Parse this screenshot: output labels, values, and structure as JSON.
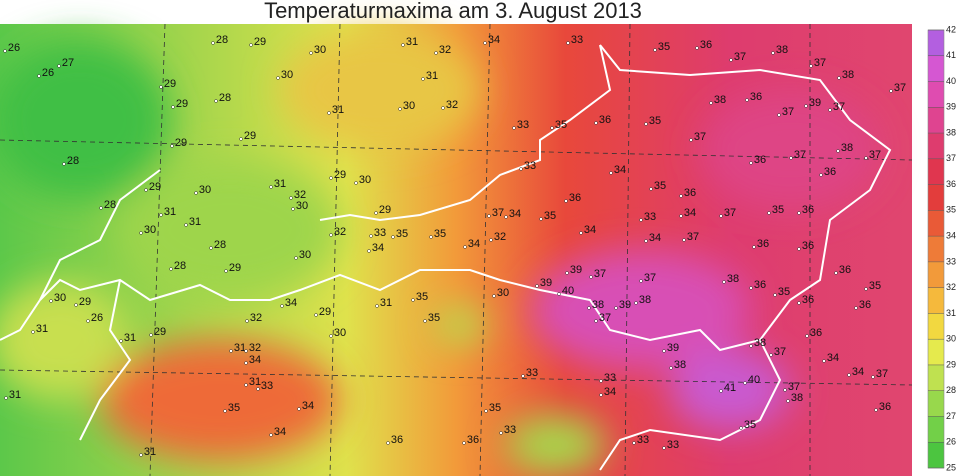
{
  "title": "Temperaturmaxima am 3. August 2013",
  "legend": {
    "ticks": [
      25,
      26,
      27,
      28,
      29,
      30,
      31,
      32,
      33,
      34,
      35,
      36,
      37,
      38,
      39,
      40,
      41,
      42
    ],
    "colors": [
      "#2fb83a",
      "#4cc540",
      "#72d048",
      "#98d84c",
      "#bfe150",
      "#e5ea4d",
      "#f2d840",
      "#f5b93c",
      "#f29a3a",
      "#ee7b38",
      "#e95a37",
      "#e33d3c",
      "#e0364f",
      "#de3c6e",
      "#df4490",
      "#df4cb0",
      "#d557d2",
      "#b35fe0"
    ]
  },
  "stations": [
    26,
    27,
    26,
    28,
    29,
    30,
    31,
    32,
    34,
    33,
    35,
    36,
    37,
    38,
    37,
    38,
    37,
    31,
    30,
    29,
    28,
    29,
    31,
    30,
    32,
    33,
    35,
    36,
    35,
    37,
    38,
    36,
    37,
    39,
    37,
    38,
    37,
    28,
    29,
    29,
    33,
    34,
    35,
    36,
    36,
    37,
    36,
    29,
    30,
    31,
    29,
    30,
    29,
    37,
    34,
    35,
    36,
    33,
    34,
    37,
    35,
    36,
    28,
    30,
    31,
    28,
    29,
    30,
    32,
    33,
    34,
    35,
    35,
    34,
    32,
    34,
    34,
    37,
    36,
    36,
    39,
    37,
    37,
    38,
    36,
    36,
    35,
    40,
    39,
    38,
    39,
    38,
    37,
    35,
    36,
    29,
    30,
    31,
    26,
    31,
    34,
    32,
    29,
    30,
    31,
    35,
    35,
    30,
    38,
    36,
    36,
    39,
    38,
    37,
    34,
    34,
    37,
    29,
    31,
    32,
    34,
    31,
    33,
    35,
    34,
    33,
    33,
    34,
    41,
    40,
    37,
    38,
    36,
    31,
    36,
    36,
    35,
    33,
    33,
    33,
    31,
    34,
    35,
    28,
    31,
    30,
    32
  ]
}
